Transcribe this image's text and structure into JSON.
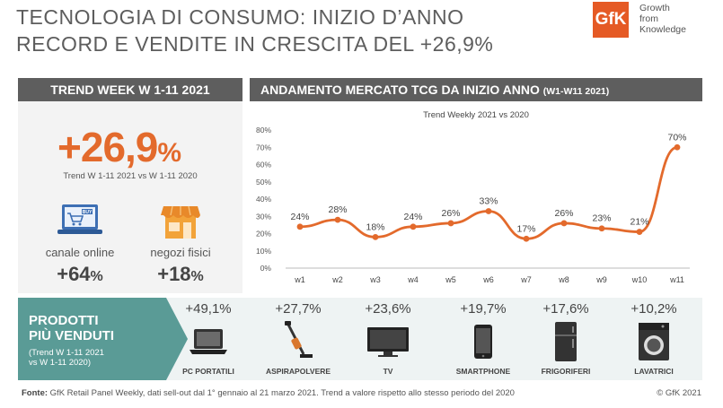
{
  "header": {
    "title_line1": "TECNOLOGIA DI CONSUMO: INIZIO D’ANNO",
    "title_line2": "RECORD E VENDITE IN CRESCITA DEL +26,9%",
    "logo_text": "GfK",
    "logo_tagline": [
      "Growth",
      "from",
      "Knowledge"
    ],
    "brand_color": "#e55a25"
  },
  "left_panel": {
    "band_title": "TREND WEEK W 1-11 2021",
    "big_value": "+26,9",
    "big_unit": "%",
    "note": "Trend W 1-11 2021 vs W 1-11 2020",
    "accent": "#e36a2c",
    "channels": [
      {
        "label": "canale online",
        "value": "+64",
        "unit": "%",
        "icon": "laptop-cart-icon",
        "badge": "BUY"
      },
      {
        "label": "negozi fisici",
        "value": "+18",
        "unit": "%",
        "icon": "storefront-icon"
      }
    ]
  },
  "right_panel": {
    "band_title": "ANDAMENTO MERCATO TCG DA INIZIO ANNO",
    "band_title_small": "(W1-W11 2021)"
  },
  "chart_data": {
    "type": "line",
    "title": "Trend Weekly 2021 vs 2020",
    "categories": [
      "w1",
      "w2",
      "w3",
      "w4",
      "w5",
      "w6",
      "w7",
      "w8",
      "w9",
      "w10",
      "w11"
    ],
    "series": [
      {
        "values": [
          24,
          28,
          18,
          24,
          26,
          33,
          17,
          26,
          23,
          21,
          70
        ]
      }
    ],
    "data_labels": [
      "24%",
      "28%",
      "18%",
      "24%",
      "26%",
      "33%",
      "17%",
      "26%",
      "23%",
      "21%",
      "70%"
    ],
    "y_ticks": [
      "0%",
      "10%",
      "20%",
      "30%",
      "40%",
      "50%",
      "60%",
      "70%",
      "80%"
    ],
    "ylim": [
      0,
      80
    ],
    "grid": false,
    "line_color": "#e36a2c"
  },
  "products": {
    "heading_line1": "PRODOTTI",
    "heading_line2": "PIÙ VENDUTI",
    "sub_line1": "(Trend W 1-11 2021",
    "sub_line2": "vs W 1-11 2020)",
    "heading_color": "#5a9b96",
    "items": [
      {
        "value": "+49,1%",
        "name": "PC PORTATILI",
        "icon": "laptop-icon"
      },
      {
        "value": "+27,7%",
        "name": "ASPIRAPOLVERE",
        "icon": "vacuum-cleaner-icon"
      },
      {
        "value": "+23,6%",
        "name": "TV",
        "icon": "tv-icon"
      },
      {
        "value": "+19,7%",
        "name": "SMARTPHONE",
        "icon": "smartphone-icon"
      },
      {
        "value": "+17,6%",
        "name": "FRIGORIFERI",
        "icon": "refrigerator-icon"
      },
      {
        "value": "+10,2%",
        "name": "LAVATRICI",
        "icon": "washing-machine-icon"
      }
    ]
  },
  "footer": {
    "source_label": "Fonte:",
    "source_text": " GfK Retail Panel Weekly, dati sell-out dal 1° gennaio al 21 marzo 2021. Trend a valore rispetto allo stesso periodo del 2020",
    "copyright": "© GfK 2021"
  }
}
